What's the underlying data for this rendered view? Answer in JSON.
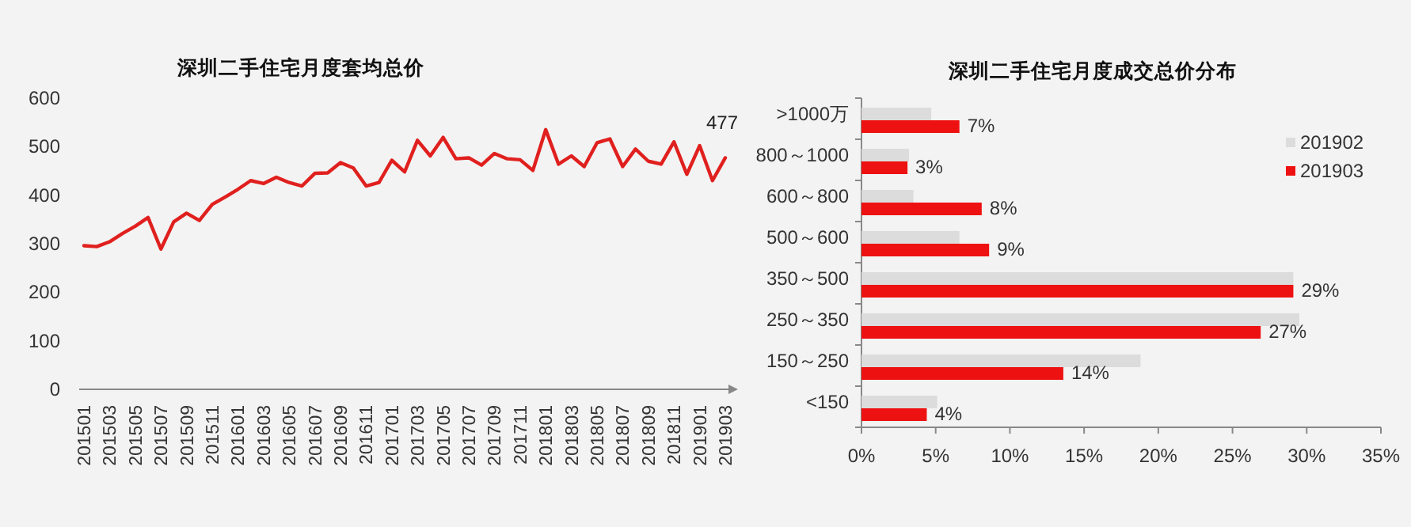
{
  "chart_data": [
    {
      "type": "line",
      "title": "深圳二手住宅月度套均总价",
      "categories": [
        "201501",
        null,
        "201503",
        null,
        "201505",
        null,
        "201507",
        null,
        "201509",
        null,
        "201511",
        null,
        "201601",
        null,
        "201603",
        null,
        "201605",
        null,
        "201607",
        null,
        "201609",
        null,
        "201611",
        null,
        "201701",
        null,
        "201703",
        null,
        "201705",
        null,
        "201707",
        null,
        "201709",
        null,
        "201711",
        null,
        "201801",
        null,
        "201803",
        null,
        "201805",
        null,
        "201807",
        null,
        "201809",
        null,
        "201811",
        null,
        "201901",
        null,
        "201903"
      ],
      "series": [
        {
          "color": "#e0201e",
          "values": [
            296,
            294,
            304,
            321,
            336,
            354,
            289,
            345,
            363,
            348,
            381,
            396,
            412,
            430,
            424,
            437,
            426,
            419,
            445,
            446,
            467,
            456,
            419,
            426,
            472,
            448,
            513,
            481,
            519,
            475,
            477,
            462,
            486,
            475,
            473,
            451,
            535,
            464,
            481,
            459,
            508,
            516,
            459,
            495,
            470,
            464,
            510,
            443,
            502,
            430,
            477
          ]
        }
      ],
      "annotations": [
        {
          "text": "477",
          "x": "201903",
          "y": 477
        }
      ],
      "ylim": [
        0,
        600
      ],
      "yticks": [
        0,
        100,
        200,
        300,
        400,
        500,
        600
      ],
      "grid": false,
      "marker": "none",
      "line_style": "solid"
    },
    {
      "type": "bar",
      "title": "深圳二手住宅月度成交总价分布",
      "orientation": "horizontal",
      "categories": [
        ">1000万",
        "800～1000",
        "600～800",
        "500～600",
        "350～500",
        "250～350",
        "150～250",
        "<150"
      ],
      "series": [
        {
          "name": "201902",
          "color": "#dcdcdc",
          "values": [
            4.7,
            3.2,
            3.5,
            6.6,
            29.1,
            29.5,
            18.8,
            5.1
          ]
        },
        {
          "name": "201903",
          "color": "#ee1111",
          "values": [
            6.6,
            3.1,
            8.1,
            8.6,
            29.1,
            26.9,
            13.6,
            4.4
          ],
          "value_labels": [
            "7%",
            "3%",
            "8%",
            "9%",
            "29%",
            "27%",
            "14%",
            "4%"
          ]
        }
      ],
      "xlim": [
        0,
        35
      ],
      "xticks": [
        {
          "value": 0,
          "label": "0%"
        },
        {
          "value": 5,
          "label": "5%"
        },
        {
          "value": 10,
          "label": "10%"
        },
        {
          "value": 15,
          "label": "15%"
        },
        {
          "value": 20,
          "label": "20%"
        },
        {
          "value": 25,
          "label": "25%"
        },
        {
          "value": 30,
          "label": "30%"
        },
        {
          "value": 35,
          "label": "35%"
        }
      ],
      "grid": false,
      "legend": "top right"
    }
  ]
}
